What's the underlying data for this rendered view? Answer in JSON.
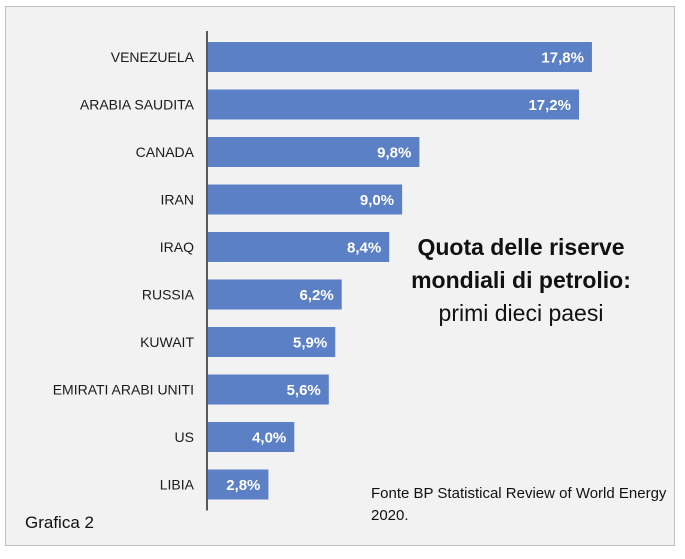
{
  "chart_data": {
    "type": "bar",
    "orientation": "horizontal",
    "categories": [
      "VENEZUELA",
      "ARABIA SAUDITA",
      "CANADA",
      "IRAN",
      "IRAQ",
      "RUSSIA",
      "KUWAIT",
      "EMIRATI ARABI UNITI",
      "US",
      "LIBIA"
    ],
    "values": [
      17.8,
      17.2,
      9.8,
      9.0,
      8.4,
      6.2,
      5.9,
      5.6,
      4.0,
      2.8
    ],
    "data_labels": [
      "17,8%",
      "17,2%",
      "9,8%",
      "9,0%",
      "8,4%",
      "6,2%",
      "5,9%",
      "5,6%",
      "4,0%",
      "2,8%"
    ],
    "unit": "%",
    "title_bold": "Quota delle riserve mondiali di petrolio:",
    "title_regular": "primi dieci paesi",
    "bar_color": "#5b80c6",
    "grid": false,
    "legend": "none"
  },
  "source_note": "Fonte BP Statistical Review of World Energy 2020.",
  "figure_label": "Grafica 2"
}
